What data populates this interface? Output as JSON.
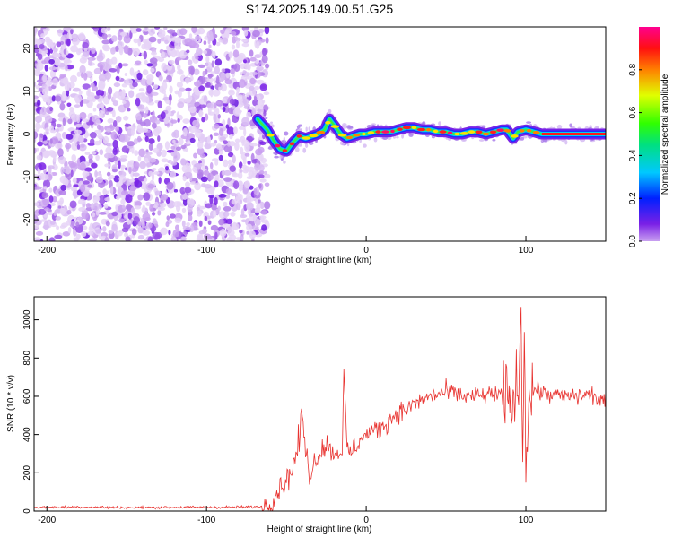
{
  "figure": {
    "title": "S174.2025.149.00.51.G25"
  },
  "chart_data": [
    {
      "type": "heatmap",
      "xlabel": "Height of straight line (km)",
      "ylabel": "Frequency (Hz)",
      "xlim": [
        -208,
        150
      ],
      "ylim": [
        -25,
        25
      ],
      "xticks": [
        -200,
        -100,
        0,
        100
      ],
      "yticks": [
        -20,
        -10,
        0,
        10,
        20
      ],
      "noise_region_x": [
        -208,
        -65
      ],
      "ridge": {
        "x": [
          -68,
          -62,
          -58,
          -54,
          -50,
          -46,
          -42,
          -38,
          -34,
          -30,
          -26,
          -23,
          -20,
          -16,
          -12,
          -8,
          -4,
          0,
          5,
          10,
          15,
          20,
          25,
          30,
          35,
          40,
          45,
          50,
          55,
          60,
          65,
          70,
          75,
          80,
          85,
          88,
          92,
          95,
          100,
          105,
          110,
          120,
          130,
          140,
          150
        ],
        "y": [
          3.5,
          1,
          -1.5,
          -3.5,
          -4,
          -2,
          -0.5,
          -1,
          -0.5,
          0,
          1,
          3.5,
          2,
          0,
          -1,
          -0.5,
          0,
          0,
          0.5,
          0.5,
          0.5,
          1,
          1.5,
          1.5,
          1,
          1,
          0.5,
          0.5,
          0,
          0,
          0.5,
          0.5,
          0,
          0.5,
          1,
          1,
          -1,
          0.5,
          1,
          0.5,
          0,
          0,
          0,
          0,
          0
        ]
      },
      "colorbar": {
        "label": "Normalized spectral amplitude",
        "range": [
          0,
          1
        ],
        "ticks": [
          "0.0",
          "0.2",
          "0.4",
          "0.6",
          "0.8"
        ],
        "colormap": "hsv-rainbow (purple→blue→cyan→green→yellow→red→pink)"
      }
    },
    {
      "type": "line",
      "xlabel": "Height of straight line (km)",
      "ylabel": "SNR (10 * v/v)",
      "xlim": [
        -208,
        150
      ],
      "ylim": [
        0,
        1120
      ],
      "xticks": [
        -200,
        -100,
        0,
        100
      ],
      "yticks": [
        0,
        200,
        400,
        600,
        800,
        1000
      ],
      "series": [
        {
          "color": "#e8322f",
          "x": [
            -208,
            -180,
            -150,
            -120,
            -90,
            -70,
            -62,
            -58,
            -55,
            -50,
            -45,
            -42,
            -40,
            -38,
            -35,
            -30,
            -25,
            -20,
            -15,
            -14,
            -12,
            -10,
            -5,
            0,
            5,
            10,
            15,
            20,
            25,
            30,
            40,
            50,
            55,
            60,
            70,
            80,
            85,
            90,
            95,
            97,
            98,
            99,
            100,
            102,
            105,
            110,
            120,
            130,
            140,
            150
          ],
          "y": [
            20,
            22,
            18,
            20,
            20,
            22,
            25,
            60,
            120,
            160,
            250,
            370,
            520,
            300,
            200,
            300,
            350,
            300,
            320,
            700,
            330,
            300,
            360,
            400,
            420,
            440,
            480,
            520,
            530,
            560,
            600,
            620,
            620,
            600,
            600,
            610,
            600,
            580,
            600,
            1100,
            200,
            1000,
            300,
            600,
            640,
            620,
            600,
            600,
            610,
            570
          ]
        }
      ]
    }
  ]
}
